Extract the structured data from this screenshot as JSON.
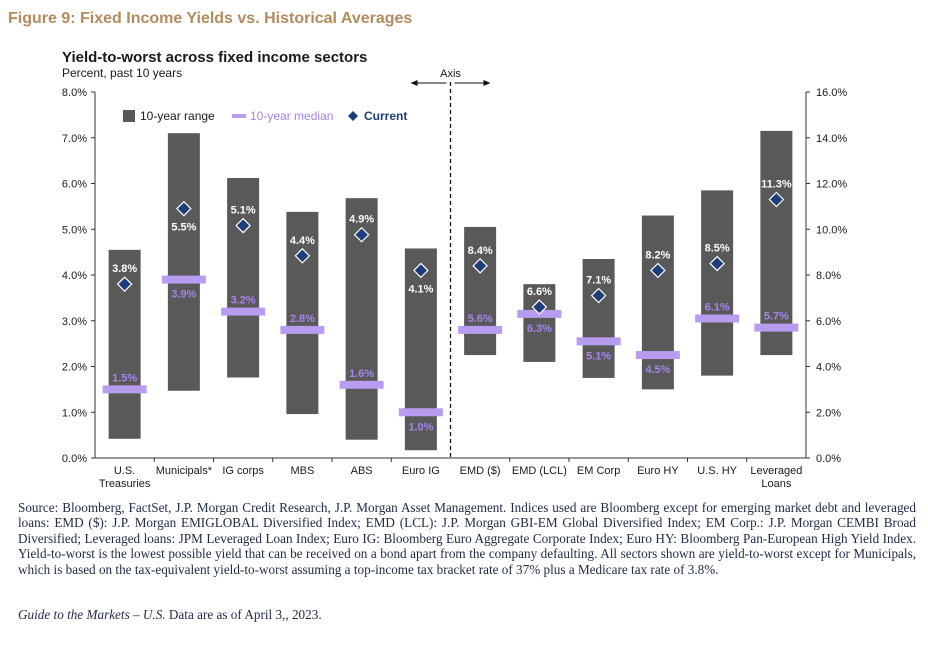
{
  "figure_title": "Figure 9: Fixed Income Yields vs. Historical Averages",
  "chart_data": {
    "type": "range-bar",
    "title": "Yield-to-worst across fixed income sectors",
    "subtitle": "Percent, past 10 years",
    "axis_divider_label": "Axis",
    "legend": {
      "range": "10-year range",
      "median": "10-year median",
      "current": "Current",
      "placement": "top-left"
    },
    "left_axis": {
      "range": [
        0,
        8
      ],
      "ticks": [
        "0.0%",
        "1.0%",
        "2.0%",
        "3.0%",
        "4.0%",
        "5.0%",
        "6.0%",
        "7.0%",
        "8.0%"
      ]
    },
    "right_axis": {
      "range": [
        0,
        16
      ],
      "ticks": [
        "0.0%",
        "2.0%",
        "4.0%",
        "6.0%",
        "8.0%",
        "10.0%",
        "12.0%",
        "14.0%",
        "16.0%"
      ]
    },
    "colors": {
      "range": "#595959",
      "median": "#b79cf0",
      "current": "#1f3d7a",
      "median_label": "#a685ec",
      "current_label": "#ffffff"
    },
    "categories": [
      {
        "label": [
          "U.S.",
          "Treasuries"
        ],
        "axis": "left",
        "min": 0.42,
        "max": 4.55,
        "median": 1.5,
        "current": 3.8,
        "median_label": "1.5%",
        "current_label": "3.8%"
      },
      {
        "label": [
          "Municipals*"
        ],
        "axis": "left",
        "min": 1.47,
        "max": 7.1,
        "median": 3.9,
        "current": 5.45,
        "median_label": "3.9%",
        "current_label": "5.5%"
      },
      {
        "label": [
          "IG corps"
        ],
        "axis": "left",
        "min": 1.76,
        "max": 6.12,
        "median": 3.2,
        "current": 5.08,
        "median_label": "3.2%",
        "current_label": "5.1%"
      },
      {
        "label": [
          "MBS"
        ],
        "axis": "left",
        "min": 0.96,
        "max": 5.38,
        "median": 2.8,
        "current": 4.42,
        "median_label": "2.8%",
        "current_label": "4.4%"
      },
      {
        "label": [
          "ABS"
        ],
        "axis": "left",
        "min": 0.4,
        "max": 5.68,
        "median": 1.6,
        "current": 4.88,
        "median_label": "1.6%",
        "current_label": "4.9%"
      },
      {
        "label": [
          "Euro IG"
        ],
        "axis": "left",
        "min": 0.17,
        "max": 4.58,
        "median": 1.0,
        "current": 4.1,
        "median_label": "1.0%",
        "current_label": "4.1%"
      },
      {
        "label": [
          "EMD ($)"
        ],
        "axis": "right",
        "min": 4.5,
        "max": 10.1,
        "median": 5.6,
        "current": 8.4,
        "median_label": "5.6%",
        "current_label": "8.4%"
      },
      {
        "label": [
          "EMD (LCL)"
        ],
        "axis": "right",
        "min": 4.2,
        "max": 7.6,
        "median": 6.3,
        "current": 6.6,
        "median_label": "6.3%",
        "current_label": "6.6%"
      },
      {
        "label": [
          "EM Corp"
        ],
        "axis": "right",
        "min": 3.5,
        "max": 8.7,
        "median": 5.1,
        "current": 7.1,
        "median_label": "5.1%",
        "current_label": "7.1%"
      },
      {
        "label": [
          "Euro HY"
        ],
        "axis": "right",
        "min": 3.0,
        "max": 10.6,
        "median": 4.5,
        "current": 8.2,
        "median_label": "4.5%",
        "current_label": "8.2%"
      },
      {
        "label": [
          "U.S. HY"
        ],
        "axis": "right",
        "min": 3.6,
        "max": 11.7,
        "median": 6.1,
        "current": 8.5,
        "median_label": "6.1%",
        "current_label": "8.5%"
      },
      {
        "label": [
          "Leveraged",
          "Loans"
        ],
        "axis": "right",
        "min": 4.5,
        "max": 14.3,
        "median": 5.7,
        "current": 11.3,
        "median_label": "5.7%",
        "current_label": "11.3%"
      }
    ]
  },
  "source_text": "Source: Bloomberg, FactSet, J.P. Morgan Credit Research, J.P. Morgan Asset Management. Indices used are Bloomberg except for emerging market debt and leveraged loans: EMD ($): J.P. Morgan EMIGLOBAL Diversified Index; EMD (LCL): J.P. Morgan GBI-EM Global Diversified Index; EM Corp.: J.P. Morgan CEMBI Broad Diversified; Leveraged loans: JPM Leveraged Loan Index; Euro IG: Bloomberg Euro Aggregate Corporate Index; Euro HY: Bloomberg Pan-European High Yield Index. Yield-to-worst is the lowest possible yield that can be received on a bond apart from the company defaulting. All sectors shown are yield-to-worst except for Municipals, which is based on the tax-equivalent yield-to-worst assuming a top-income tax bracket rate of 37% plus a Medicare tax rate of 3.8%.",
  "guide_italic": "Guide to the Markets – U.S.",
  "guide_rest": " Data are as of April 3,, 2023."
}
